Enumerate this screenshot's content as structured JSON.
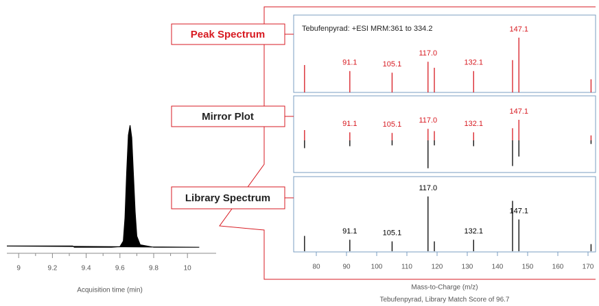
{
  "chart_data": [
    {
      "type": "area",
      "xlabel": "Acquisition time (min)",
      "x": [
        8.93,
        9.32,
        9.33,
        9.55,
        9.6,
        9.62,
        9.63,
        9.64,
        9.65,
        9.66,
        9.67,
        9.68,
        9.69,
        9.7,
        9.72,
        9.8,
        10.07
      ],
      "values": [
        2,
        2,
        1,
        1,
        1.5,
        6,
        25,
        62,
        92,
        100,
        90,
        60,
        30,
        10,
        3,
        1,
        1
      ],
      "color": "#000000",
      "xlim": [
        8.93,
        10.17
      ],
      "ylim": [
        0,
        100
      ],
      "xticks": [
        9,
        9.2,
        9.4,
        9.6,
        9.8,
        10
      ]
    },
    {
      "type": "stem",
      "title": "Tebufenpyrad: +ESI MRM:361 to 334.2",
      "mirror_label": "Mirror Plot",
      "xlabel": "Mass-to-Charge (m/z)",
      "caption": "Tebufenpyrad, Library Match Score of 96.7",
      "x": [
        76.1,
        91.1,
        105.1,
        117.0,
        119.1,
        132.1,
        145.0,
        147.1,
        171.0
      ],
      "x_labels": [
        null,
        "91.1",
        "105.1",
        "117.0",
        null,
        "132.1",
        null,
        "147.1",
        null
      ],
      "series": [
        {
          "name": "Peak Spectrum",
          "color": "#d71920",
          "values": [
            50,
            39,
            36,
            56,
            45,
            39,
            59,
            100,
            24
          ]
        },
        {
          "name": "Library Spectrum",
          "color": "#000000",
          "values": [
            28,
            21,
            18,
            100,
            18,
            21,
            92,
            58,
            13
          ]
        }
      ],
      "xlim": [
        72.5,
        172.5
      ],
      "ylim": [
        0,
        140
      ],
      "xticks": [
        80,
        90,
        100,
        110,
        120,
        130,
        140,
        150,
        160,
        170
      ]
    }
  ]
}
